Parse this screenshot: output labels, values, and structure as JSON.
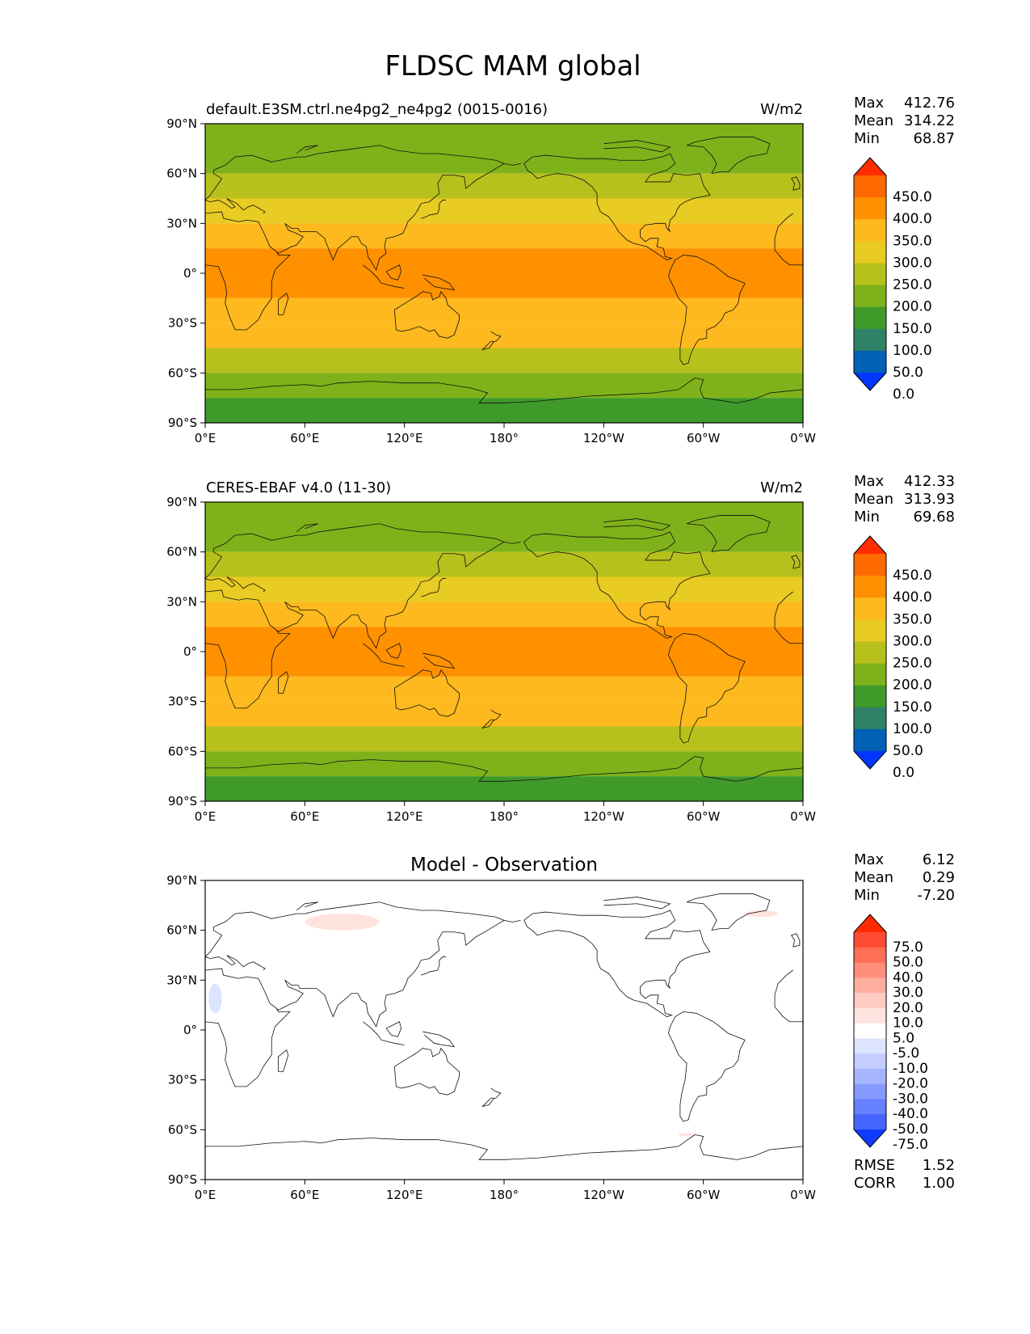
{
  "title": "FLDSC MAM global",
  "lat_ticks": [
    "90°N",
    "60°N",
    "30°N",
    "0°",
    "30°S",
    "60°S",
    "90°S"
  ],
  "lon_ticks": [
    "0°E",
    "60°E",
    "120°E",
    "180°",
    "120°W",
    "60°W",
    "0°W"
  ],
  "stat_labels": [
    "Max",
    "Mean",
    "Min"
  ],
  "panels": [
    {
      "id": "model",
      "left_title": "default.E3SM.ctrl.ne4pg2_ne4pg2 (0015-0016)",
      "center_title": "",
      "units": "W/m2",
      "stats": [
        "412.76",
        "314.22",
        "68.87"
      ],
      "colorbar_labels": [
        "450.0",
        "400.0",
        "350.0",
        "300.0",
        "250.0",
        "200.0",
        "150.0",
        "100.0",
        "50.0",
        "0.0"
      ]
    },
    {
      "id": "obs",
      "left_title": "CERES-EBAF v4.0 (11-30)",
      "center_title": "",
      "units": "W/m2",
      "stats": [
        "412.33",
        "313.93",
        "69.68"
      ],
      "colorbar_labels": [
        "450.0",
        "400.0",
        "350.0",
        "300.0",
        "250.0",
        "200.0",
        "150.0",
        "100.0",
        "50.0",
        "0.0"
      ]
    },
    {
      "id": "diff",
      "left_title": "",
      "center_title": "Model - Observation",
      "units": "",
      "stats": [
        "6.12",
        "0.29",
        "-7.20"
      ],
      "colorbar_labels": [
        "75.0",
        "50.0",
        "40.0",
        "30.0",
        "20.0",
        "10.0",
        "5.0",
        "-5.0",
        "-10.0",
        "-20.0",
        "-30.0",
        "-40.0",
        "-50.0",
        "-75.0"
      ],
      "extra_stats": [
        {
          "label": "RMSE",
          "value": "1.52"
        },
        {
          "label": "CORR",
          "value": "1.00"
        }
      ]
    }
  ],
  "chart_data": [
    {
      "type": "heatmap",
      "panel": "model",
      "ylim": [
        -90,
        90
      ],
      "xlim": [
        0,
        360
      ],
      "zonal_bands": [
        {
          "lat_range": [
            60,
            90
          ],
          "value": 175
        },
        {
          "lat_range": [
            45,
            60
          ],
          "value": 200
        },
        {
          "lat_range": [
            30,
            45
          ],
          "value": 275
        },
        {
          "lat_range": [
            15,
            30
          ],
          "value": 325
        },
        {
          "lat_range": [
            -15,
            15
          ],
          "value": 375
        },
        {
          "lat_range": [
            -30,
            -15
          ],
          "value": 325
        },
        {
          "lat_range": [
            -45,
            -30
          ],
          "value": 300
        },
        {
          "lat_range": [
            -60,
            -45
          ],
          "value": 225
        },
        {
          "lat_range": [
            -75,
            -60
          ],
          "value": 150
        },
        {
          "lat_range": [
            -90,
            -75
          ],
          "value": 100
        }
      ],
      "colorbar_colors": [
        "#ff2d00",
        "#ff6a00",
        "#ff9100",
        "#fdb91d",
        "#e8cb23",
        "#b8c01c",
        "#7fb21a",
        "#3f9a2a",
        "#2f8268",
        "#0061b5",
        "#0037ff"
      ]
    },
    {
      "type": "heatmap",
      "panel": "obs",
      "ylim": [
        -90,
        90
      ],
      "xlim": [
        0,
        360
      ],
      "zonal_bands": [
        {
          "lat_range": [
            60,
            90
          ],
          "value": 175
        },
        {
          "lat_range": [
            45,
            60
          ],
          "value": 200
        },
        {
          "lat_range": [
            30,
            45
          ],
          "value": 275
        },
        {
          "lat_range": [
            15,
            30
          ],
          "value": 325
        },
        {
          "lat_range": [
            -15,
            15
          ],
          "value": 375
        },
        {
          "lat_range": [
            -30,
            -15
          ],
          "value": 325
        },
        {
          "lat_range": [
            -45,
            -30
          ],
          "value": 300
        },
        {
          "lat_range": [
            -60,
            -45
          ],
          "value": 225
        },
        {
          "lat_range": [
            -75,
            -60
          ],
          "value": 150
        },
        {
          "lat_range": [
            -90,
            -75
          ],
          "value": 100
        }
      ],
      "colorbar_colors": [
        "#ff2d00",
        "#ff6a00",
        "#ff9100",
        "#fdb91d",
        "#e8cb23",
        "#b8c01c",
        "#7fb21a",
        "#3f9a2a",
        "#2f8268",
        "#0061b5",
        "#0037ff"
      ]
    },
    {
      "type": "heatmap",
      "panel": "diff",
      "ylim": [
        -90,
        90
      ],
      "xlim": [
        0,
        360
      ],
      "features": [
        {
          "lon_range": [
            60,
            105
          ],
          "lat_range": [
            60,
            70
          ],
          "value": 7
        },
        {
          "lon_range": [
            2,
            10
          ],
          "lat_range": [
            10,
            28
          ],
          "value": -7
        },
        {
          "lon_range": [
            325,
            345
          ],
          "lat_range": [
            68,
            72
          ],
          "value": 7
        },
        {
          "lon_range": [
            285,
            295
          ],
          "lat_range": [
            -64,
            -62
          ],
          "value": 7
        }
      ],
      "colorbar_colors": [
        "#ff2a00",
        "#ff4a33",
        "#ff6e57",
        "#ff8e7a",
        "#ffad9e",
        "#ffcbc2",
        "#ffe3de",
        "#ffffff",
        "#dde4ff",
        "#c3ceff",
        "#a5b5ff",
        "#8699ff",
        "#6680ff",
        "#4466ff",
        "#0f3bff"
      ]
    }
  ]
}
